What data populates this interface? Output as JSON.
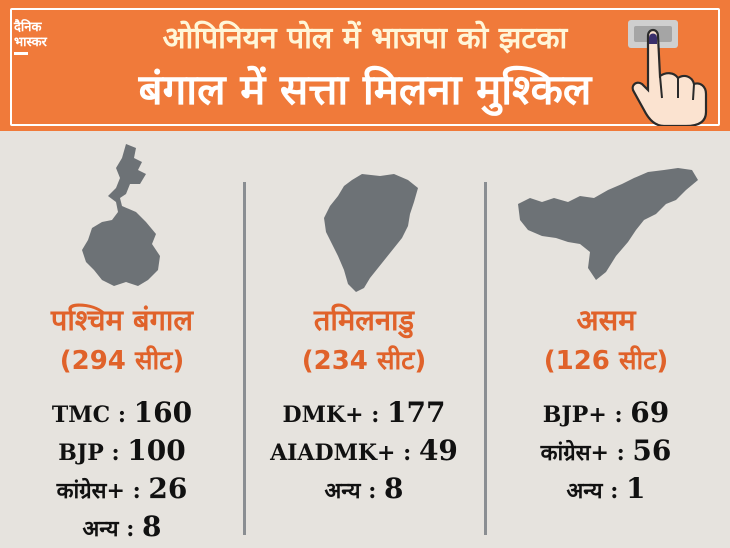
{
  "header": {
    "title_line1": "ओपिनियन पोल में भाजपा को झटका",
    "title_line2": "बंगाल में सत्ता मिलना मुश्किल",
    "logo_line1": "दैनिक",
    "logo_line2": "भास्कर",
    "finger_icon": "voting-finger-icon"
  },
  "colors": {
    "header_bg": "#f07a3a",
    "accent_text": "#e0622a",
    "map_fill": "#6d7276",
    "background": "#e6e3de"
  },
  "states": [
    {
      "name": "पश्चिम बंगाल",
      "seats": "(294 सीट)",
      "results": [
        {
          "party": "TMC",
          "sep": ":",
          "value": "160"
        },
        {
          "party": "BJP",
          "sep": ":",
          "value": "100"
        },
        {
          "party": "कांग्रेस+",
          "sep": ":",
          "value": "26"
        },
        {
          "party": "अन्य",
          "sep": ":",
          "value": "8"
        }
      ]
    },
    {
      "name": "तमिलनाडु",
      "seats": "(234 सीट)",
      "results": [
        {
          "party": "DMK+",
          "sep": ":",
          "value": "177"
        },
        {
          "party": "AIADMK+",
          "sep": ":",
          "value": "49"
        },
        {
          "party": "अन्य",
          "sep": ":",
          "value": "8"
        }
      ]
    },
    {
      "name": "असम",
      "seats": "(126 सीट)",
      "results": [
        {
          "party": "BJP+",
          "sep": ":",
          "value": "69"
        },
        {
          "party": "कांग्रेस+",
          "sep": ":",
          "value": "56"
        },
        {
          "party": "अन्य",
          "sep": ":",
          "value": "1"
        }
      ]
    }
  ]
}
